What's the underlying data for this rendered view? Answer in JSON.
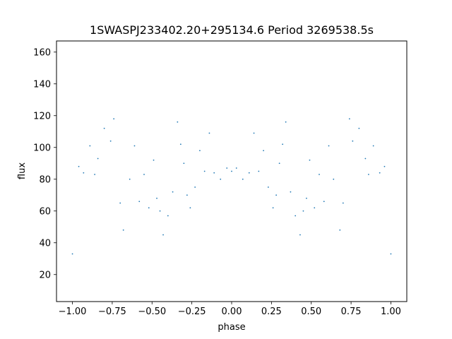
{
  "chart_data": {
    "type": "scatter",
    "title": "1SWASPJ233402.20+295134.6 Period 3269538.5s",
    "xlabel": "phase",
    "ylabel": "flux",
    "xlim": [
      -1.1,
      1.1
    ],
    "ylim": [
      3,
      167
    ],
    "x_ticks": [
      -1.0,
      -0.75,
      -0.5,
      -0.25,
      0.0,
      0.25,
      0.5,
      0.75,
      1.0
    ],
    "x_tick_labels": [
      "−1.00",
      "−0.75",
      "−0.50",
      "−0.25",
      "0.00",
      "0.25",
      "0.50",
      "0.75",
      "1.00"
    ],
    "y_ticks": [
      20,
      40,
      60,
      80,
      100,
      120,
      140,
      160
    ],
    "y_tick_labels": [
      "20",
      "40",
      "60",
      "80",
      "100",
      "120",
      "140",
      "160"
    ],
    "grid": false,
    "legend": "none",
    "marker_color": "#1f77b4",
    "symmetric_about_phase_zero": true,
    "series": [
      {
        "values": [
          [
            -1.0,
            33
          ],
          [
            -0.96,
            88
          ],
          [
            -0.93,
            84
          ],
          [
            -0.89,
            101
          ],
          [
            -0.86,
            83
          ],
          [
            -0.84,
            93
          ],
          [
            -0.8,
            112
          ],
          [
            -0.76,
            104
          ],
          [
            -0.74,
            118
          ],
          [
            -0.7,
            65
          ],
          [
            -0.68,
            48
          ],
          [
            -0.64,
            80
          ],
          [
            -0.61,
            101
          ],
          [
            -0.58,
            66
          ],
          [
            -0.55,
            83
          ],
          [
            -0.52,
            62
          ],
          [
            -0.49,
            92
          ],
          [
            -0.47,
            68
          ],
          [
            -0.45,
            60
          ],
          [
            -0.43,
            45
          ],
          [
            -0.4,
            57
          ],
          [
            -0.37,
            72
          ],
          [
            -0.34,
            116
          ],
          [
            -0.32,
            102
          ],
          [
            -0.3,
            90
          ],
          [
            -0.28,
            70
          ],
          [
            -0.26,
            62
          ],
          [
            -0.23,
            75
          ],
          [
            -0.2,
            98
          ],
          [
            -0.17,
            85
          ],
          [
            -0.14,
            109
          ],
          [
            -0.11,
            84
          ],
          [
            -0.07,
            80
          ],
          [
            -0.03,
            87
          ],
          [
            0.0,
            85
          ],
          [
            0.03,
            87
          ],
          [
            0.07,
            80
          ],
          [
            0.11,
            84
          ],
          [
            0.14,
            109
          ],
          [
            0.17,
            85
          ],
          [
            0.2,
            98
          ],
          [
            0.23,
            75
          ],
          [
            0.26,
            62
          ],
          [
            0.28,
            70
          ],
          [
            0.3,
            90
          ],
          [
            0.32,
            102
          ],
          [
            0.34,
            116
          ],
          [
            0.37,
            72
          ],
          [
            0.4,
            57
          ],
          [
            0.43,
            45
          ],
          [
            0.45,
            60
          ],
          [
            0.47,
            68
          ],
          [
            0.49,
            92
          ],
          [
            0.52,
            62
          ],
          [
            0.55,
            83
          ],
          [
            0.58,
            66
          ],
          [
            0.61,
            101
          ],
          [
            0.64,
            80
          ],
          [
            0.68,
            48
          ],
          [
            0.7,
            65
          ],
          [
            0.74,
            118
          ],
          [
            0.76,
            104
          ],
          [
            0.8,
            112
          ],
          [
            0.84,
            93
          ],
          [
            0.86,
            83
          ],
          [
            0.89,
            101
          ],
          [
            0.93,
            84
          ],
          [
            0.96,
            88
          ],
          [
            1.0,
            33
          ]
        ]
      }
    ]
  }
}
